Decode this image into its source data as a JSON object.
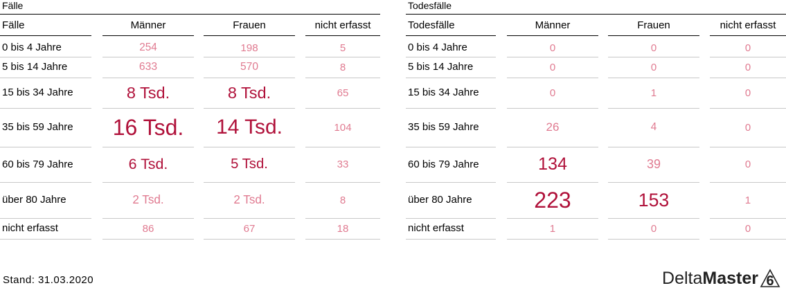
{
  "tables": [
    {
      "title": "Fälle",
      "columns": [
        "Fälle",
        "Männer",
        "Frauen",
        "nicht erfasst"
      ],
      "rows": [
        {
          "label": "0 bis 4 Jahre",
          "values": [
            "254",
            "198",
            "5"
          ],
          "magnitudes": [
            254,
            198,
            5
          ]
        },
        {
          "label": "5 bis 14 Jahre",
          "values": [
            "633",
            "570",
            "8"
          ],
          "magnitudes": [
            633,
            570,
            8
          ]
        },
        {
          "label": "15 bis 34 Jahre",
          "values": [
            "8 Tsd.",
            "8 Tsd.",
            "65"
          ],
          "magnitudes": [
            8000,
            8000,
            65
          ]
        },
        {
          "label": "35 bis 59 Jahre",
          "values": [
            "16 Tsd.",
            "14 Tsd.",
            "104"
          ],
          "magnitudes": [
            16000,
            14000,
            104
          ]
        },
        {
          "label": "60 bis 79 Jahre",
          "values": [
            "6 Tsd.",
            "5 Tsd.",
            "33"
          ],
          "magnitudes": [
            6000,
            5000,
            33
          ]
        },
        {
          "label": "über 80 Jahre",
          "values": [
            "2 Tsd.",
            "2 Tsd.",
            "8"
          ],
          "magnitudes": [
            2000,
            2000,
            8
          ]
        },
        {
          "label": "nicht erfasst",
          "values": [
            "86",
            "67",
            "18"
          ],
          "magnitudes": [
            86,
            67,
            18
          ]
        }
      ]
    },
    {
      "title": "Todesfälle",
      "columns": [
        "Todesfälle",
        "Männer",
        "Frauen",
        "nicht erfasst"
      ],
      "rows": [
        {
          "label": "0 bis 4 Jahre",
          "values": [
            "0",
            "0",
            "0"
          ],
          "magnitudes": [
            0,
            0,
            0
          ]
        },
        {
          "label": "5 bis 14 Jahre",
          "values": [
            "0",
            "0",
            "0"
          ],
          "magnitudes": [
            0,
            0,
            0
          ]
        },
        {
          "label": "15 bis 34 Jahre",
          "values": [
            "0",
            "1",
            "0"
          ],
          "magnitudes": [
            0,
            1,
            0
          ]
        },
        {
          "label": "35 bis 59 Jahre",
          "values": [
            "26",
            "4",
            "0"
          ],
          "magnitudes": [
            26,
            4,
            0
          ]
        },
        {
          "label": "60 bis 79 Jahre",
          "values": [
            "134",
            "39",
            "0"
          ],
          "magnitudes": [
            134,
            39,
            0
          ]
        },
        {
          "label": "über 80 Jahre",
          "values": [
            "223",
            "153",
            "1"
          ],
          "magnitudes": [
            223,
            153,
            1
          ]
        },
        {
          "label": "nicht erfasst",
          "values": [
            "1",
            "0",
            "0"
          ],
          "magnitudes": [
            1,
            0,
            0
          ]
        }
      ]
    }
  ],
  "footer": {
    "stand": "Stand: 31.03.2020",
    "logo_regular": "Delta",
    "logo_bold": "Master",
    "logo_mark": "6"
  },
  "colors": {
    "value_strong": "#b0113a",
    "value_light": "#e07a90"
  }
}
